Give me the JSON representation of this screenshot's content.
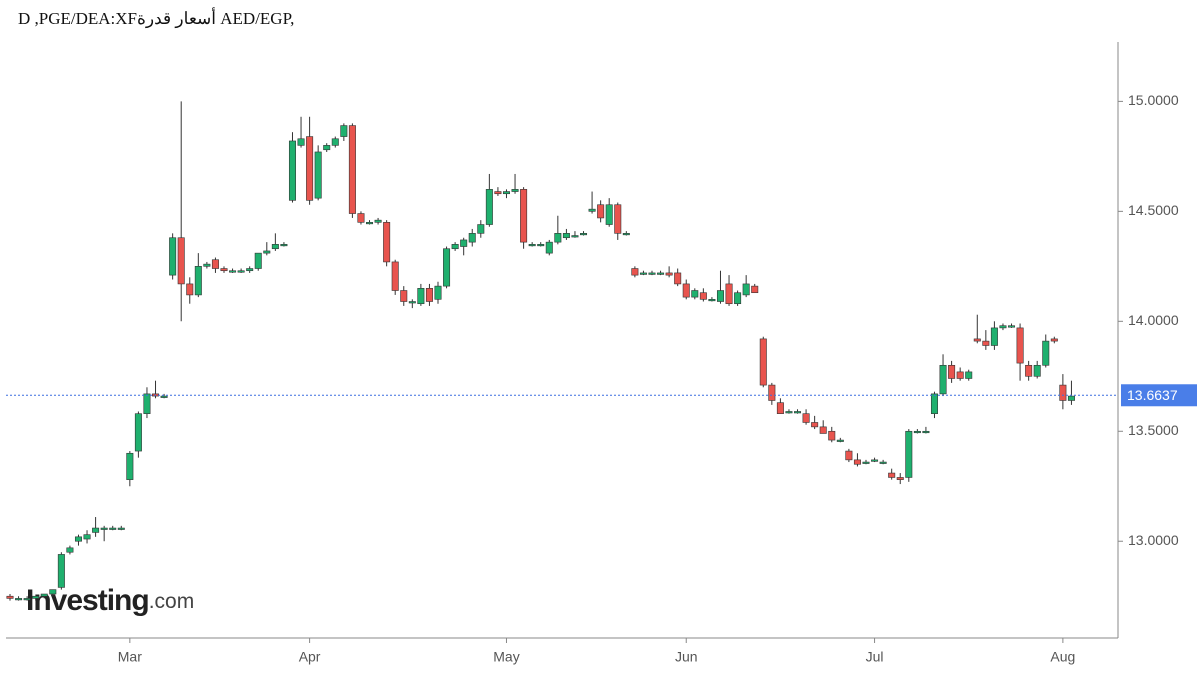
{
  "chart_data": {
    "type": "candlestick",
    "title": "D ,PGE/DEA:XFأسعار قدرة AED/EGP,",
    "watermark": [
      "Investing",
      ".com"
    ],
    "up_color": "#1fb06e",
    "down_color": "#e8544e",
    "categories": [
      null,
      null,
      null,
      null,
      null,
      null,
      null,
      null,
      null,
      null,
      null,
      null,
      null,
      null,
      "Mar",
      null,
      null,
      null,
      null,
      null,
      null,
      null,
      null,
      null,
      null,
      null,
      null,
      null,
      null,
      null,
      null,
      null,
      null,
      null,
      null,
      "Apr",
      null,
      null,
      null,
      null,
      null,
      null,
      null,
      null,
      null,
      null,
      null,
      null,
      null,
      null,
      null,
      null,
      null,
      null,
      null,
      null,
      null,
      null,
      "May",
      null,
      null,
      null,
      null,
      null,
      null,
      null,
      null,
      null,
      null,
      null,
      null,
      null,
      null,
      null,
      null,
      null,
      null,
      null,
      null,
      "Jun",
      null,
      null,
      null,
      null,
      null,
      null,
      null,
      null,
      null,
      null,
      null,
      null,
      null,
      null,
      null,
      null,
      null,
      null,
      null,
      null,
      null,
      "Jul",
      null,
      null,
      null,
      null,
      null,
      null,
      null,
      null,
      null,
      null,
      null,
      null,
      null,
      null,
      null,
      null,
      null,
      null,
      null,
      null,
      null,
      "Aug",
      null
    ],
    "open": [
      12.75,
      12.74,
      12.74,
      12.74,
      12.75,
      12.76,
      12.79,
      12.95,
      13.0,
      13.01,
      13.04,
      13.06,
      13.06,
      13.06,
      13.28,
      13.41,
      13.58,
      13.67,
      13.66,
      14.21,
      14.38,
      14.17,
      14.12,
      14.25,
      14.28,
      14.24,
      14.23,
      14.23,
      14.23,
      14.24,
      14.31,
      14.33,
      14.35,
      14.55,
      14.8,
      14.84,
      14.56,
      14.78,
      14.8,
      14.84,
      14.89,
      14.49,
      14.45,
      14.45,
      14.45,
      14.27,
      14.14,
      14.09,
      14.08,
      14.15,
      14.1,
      14.16,
      14.33,
      14.34,
      14.36,
      14.4,
      14.44,
      14.59,
      14.58,
      14.59,
      14.6,
      14.35,
      14.35,
      14.31,
      14.36,
      14.38,
      14.39,
      14.4,
      14.5,
      14.53,
      14.44,
      14.53,
      14.4,
      14.24,
      14.22,
      14.22,
      14.22,
      14.22,
      14.22,
      14.17,
      14.11,
      14.13,
      14.1,
      14.09,
      14.17,
      14.08,
      14.12,
      14.16,
      13.92,
      13.71,
      13.63,
      13.59,
      13.59,
      13.58,
      13.54,
      13.52,
      13.5,
      13.46,
      13.41,
      13.37,
      13.36,
      13.37,
      13.36,
      13.31,
      13.29,
      13.29,
      13.5,
      13.5,
      13.58,
      13.67,
      13.8,
      13.77,
      13.74,
      13.92,
      13.91,
      13.89,
      13.97,
      13.98,
      13.97,
      13.8,
      13.75,
      13.8,
      13.92,
      13.71,
      13.64
    ],
    "high": [
      12.76,
      12.75,
      12.75,
      12.75,
      12.76,
      12.78,
      12.95,
      12.98,
      13.03,
      13.05,
      13.11,
      13.07,
      13.07,
      13.07,
      13.41,
      13.59,
      13.7,
      13.73,
      13.67,
      14.4,
      15.0,
      14.2,
      14.31,
      14.27,
      14.29,
      14.25,
      14.24,
      14.24,
      14.25,
      14.3,
      14.36,
      14.4,
      14.36,
      14.86,
      14.93,
      14.93,
      14.8,
      14.81,
      14.84,
      14.9,
      14.9,
      14.5,
      14.46,
      14.47,
      14.46,
      14.28,
      14.16,
      14.1,
      14.17,
      14.17,
      14.18,
      14.34,
      14.36,
      14.38,
      14.42,
      14.46,
      14.67,
      14.61,
      14.6,
      14.67,
      14.61,
      14.36,
      14.36,
      14.37,
      14.48,
      14.42,
      14.41,
      14.41,
      14.59,
      14.55,
      14.56,
      14.54,
      14.41,
      14.25,
      14.23,
      14.23,
      14.23,
      14.25,
      14.24,
      14.19,
      14.15,
      14.15,
      14.11,
      14.23,
      14.21,
      14.14,
      14.21,
      14.17,
      13.93,
      13.72,
      13.65,
      13.6,
      13.6,
      13.6,
      13.57,
      13.55,
      13.52,
      13.47,
      13.42,
      13.4,
      13.37,
      13.38,
      13.37,
      13.33,
      13.31,
      13.51,
      13.51,
      13.52,
      13.68,
      13.85,
      13.82,
      13.79,
      13.78,
      14.03,
      13.96,
      14.0,
      13.99,
      13.99,
      13.99,
      13.82,
      13.82,
      13.94,
      13.93,
      13.76,
      13.73
    ],
    "low": [
      12.73,
      12.73,
      12.73,
      12.73,
      12.74,
      12.75,
      12.78,
      12.94,
      12.98,
      12.99,
      13.02,
      13.0,
      13.05,
      13.05,
      13.25,
      13.38,
      13.56,
      13.65,
      13.65,
      14.19,
      14.0,
      14.08,
      14.11,
      14.24,
      14.22,
      14.22,
      14.22,
      14.22,
      14.22,
      14.23,
      14.3,
      14.32,
      14.34,
      14.54,
      14.79,
      14.53,
      14.55,
      14.77,
      14.79,
      14.82,
      14.47,
      14.44,
      14.44,
      14.44,
      14.25,
      14.12,
      14.07,
      14.06,
      14.07,
      14.07,
      14.08,
      14.15,
      14.32,
      14.3,
      14.34,
      14.38,
      14.43,
      14.57,
      14.56,
      14.58,
      14.33,
      14.34,
      14.34,
      14.3,
      14.35,
      14.37,
      14.38,
      14.39,
      14.49,
      14.45,
      14.43,
      14.37,
      14.39,
      14.2,
      14.21,
      14.21,
      14.21,
      14.2,
      14.16,
      14.1,
      14.1,
      14.09,
      14.09,
      14.08,
      14.07,
      14.07,
      14.11,
      14.13,
      13.7,
      13.62,
      13.58,
      13.58,
      13.58,
      13.53,
      13.51,
      13.49,
      13.45,
      13.45,
      13.36,
      13.34,
      13.35,
      13.36,
      13.35,
      13.28,
      13.26,
      13.27,
      13.49,
      13.49,
      13.56,
      13.66,
      13.72,
      13.73,
      13.73,
      13.9,
      13.87,
      13.87,
      13.96,
      13.97,
      13.73,
      13.73,
      13.74,
      13.79,
      13.9,
      13.6,
      13.62
    ],
    "close": [
      12.74,
      12.74,
      12.74,
      12.75,
      12.76,
      12.78,
      12.94,
      12.97,
      13.02,
      13.03,
      13.06,
      13.06,
      13.06,
      13.06,
      13.4,
      13.58,
      13.67,
      13.66,
      13.66,
      14.38,
      14.17,
      14.12,
      14.25,
      14.26,
      14.24,
      14.23,
      14.23,
      14.23,
      14.24,
      14.31,
      14.32,
      14.35,
      14.35,
      14.82,
      14.83,
      14.55,
      14.77,
      14.8,
      14.83,
      14.89,
      14.49,
      14.45,
      14.45,
      14.46,
      14.27,
      14.14,
      14.09,
      14.09,
      14.15,
      14.09,
      14.16,
      14.33,
      14.35,
      14.37,
      14.4,
      14.44,
      14.6,
      14.58,
      14.59,
      14.6,
      14.36,
      14.35,
      14.35,
      14.36,
      14.4,
      14.4,
      14.39,
      14.4,
      14.51,
      14.47,
      14.53,
      14.4,
      14.4,
      14.21,
      14.22,
      14.22,
      14.22,
      14.21,
      14.17,
      14.11,
      14.14,
      14.1,
      14.1,
      14.14,
      14.08,
      14.13,
      14.17,
      14.13,
      13.71,
      13.64,
      13.58,
      13.59,
      13.59,
      13.54,
      13.52,
      13.49,
      13.46,
      13.46,
      13.37,
      13.35,
      13.36,
      13.37,
      13.36,
      13.29,
      13.28,
      13.5,
      13.5,
      13.5,
      13.67,
      13.8,
      13.74,
      13.74,
      13.77,
      13.91,
      13.89,
      13.97,
      13.98,
      13.98,
      13.81,
      13.75,
      13.8,
      13.91,
      13.91,
      13.64,
      13.66
    ],
    "last_value": 13.6637,
    "ylim": [
      12.56,
      15.27
    ],
    "yticks": [
      {
        "value": 13.0,
        "label": "13.0000"
      },
      {
        "value": 13.5,
        "label": "13.5000"
      },
      {
        "value": 14.0,
        "label": "14.0000"
      },
      {
        "value": 14.5,
        "label": "14.5000"
      },
      {
        "value": 15.0,
        "label": "15.0000"
      }
    ]
  }
}
